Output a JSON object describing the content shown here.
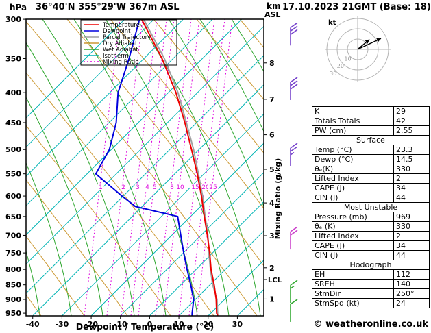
{
  "header": {
    "station": "36°40'N 355°29'W 367m ASL",
    "datetime": "17.10.2023 21GMT (Base: 18)",
    "pressure_unit": "hPa",
    "km_label": "km",
    "asl_label": "ASL"
  },
  "footer": {
    "credit": "© weatheronline.co.uk"
  },
  "chart_data": {
    "type": "line",
    "title": "Skew-T log-P sounding",
    "xlabel": "Dewpoint / Temperature (°C)",
    "ylabel": "hPa",
    "x_ticks": [
      -40,
      -30,
      -20,
      -10,
      0,
      10,
      20,
      30
    ],
    "pressure_ticks": [
      300,
      350,
      400,
      450,
      500,
      550,
      600,
      650,
      700,
      750,
      800,
      850,
      900,
      950
    ],
    "pressure_range": [
      300,
      960
    ],
    "temp_range": [
      -42,
      38
    ],
    "km_ticks": [
      8,
      7,
      6,
      5,
      4,
      3,
      2,
      1
    ],
    "mixing_ratio_values": [
      1,
      2,
      3,
      4,
      5,
      8,
      10,
      15,
      20,
      25
    ],
    "mixing_ratio_axis_label": "Mixing Ratio (g/kg)",
    "lcl_label": "LCL",
    "series": [
      {
        "name": "Parcel Trajectory",
        "color": "#a0a0a0",
        "points": [
          [
            969,
            23.3
          ],
          [
            900,
            21.0
          ],
          [
            850,
            17.7
          ],
          [
            800,
            15.0
          ],
          [
            750,
            12.4
          ],
          [
            700,
            9.9
          ],
          [
            650,
            6.6
          ],
          [
            600,
            3.2
          ],
          [
            550,
            -1.0
          ],
          [
            500,
            -5.7
          ],
          [
            450,
            -11.5
          ],
          [
            400,
            -18.1
          ],
          [
            350,
            -27.0
          ],
          [
            300,
            -39.0
          ]
        ]
      },
      {
        "name": "Temperature",
        "color": "#ee0000",
        "points": [
          [
            969,
            23.3
          ],
          [
            950,
            22.6
          ],
          [
            900,
            20.7
          ],
          [
            850,
            18.2
          ],
          [
            800,
            15.2
          ],
          [
            750,
            12.7
          ],
          [
            700,
            9.7
          ],
          [
            650,
            6.3
          ],
          [
            600,
            2.8
          ],
          [
            550,
            -1.4
          ],
          [
            500,
            -6.4
          ],
          [
            450,
            -12.0
          ],
          [
            400,
            -18.8
          ],
          [
            350,
            -27.8
          ],
          [
            300,
            -39.7
          ]
        ]
      },
      {
        "name": "Dewpoint",
        "color": "#0000dd",
        "points": [
          [
            969,
            14.5
          ],
          [
            950,
            14.2
          ],
          [
            900,
            13.0
          ],
          [
            850,
            10.2
          ],
          [
            800,
            7.0
          ],
          [
            750,
            3.8
          ],
          [
            700,
            0.6
          ],
          [
            650,
            -2.8
          ],
          [
            625,
            -18.5
          ],
          [
            600,
            -24.4
          ],
          [
            550,
            -36.1
          ],
          [
            500,
            -34.5
          ],
          [
            450,
            -35.5
          ],
          [
            400,
            -38.6
          ],
          [
            350,
            -39.1
          ],
          [
            300,
            -40.4
          ]
        ]
      }
    ],
    "legend": [
      {
        "label": "Temperature",
        "color": "#ee0000",
        "dash": ""
      },
      {
        "label": "Dewpoint",
        "color": "#0000dd",
        "dash": ""
      },
      {
        "label": "Parcel Trajectory",
        "color": "#a0a0a0",
        "dash": ""
      },
      {
        "label": "Dry Adiabat",
        "color": "#cc9933",
        "dash": ""
      },
      {
        "label": "Wet Adiabat",
        "color": "#2aa52a",
        "dash": ""
      },
      {
        "label": "Isotherm",
        "color": "#00b4b4",
        "dash": ""
      },
      {
        "label": "Mixing Ratio",
        "color": "#dd00dd",
        "dash": "2,3"
      }
    ],
    "wind_barbs": [
      {
        "p": 310,
        "color": "#7744cc",
        "speed_kt": 30
      },
      {
        "p": 384,
        "color": "#7744cc",
        "speed_kt": 30
      },
      {
        "p": 497,
        "color": "#7744cc",
        "speed_kt": 25
      },
      {
        "p": 690,
        "color": "#cc44cc",
        "speed_kt": 20
      },
      {
        "p": 851,
        "color": "#33aa33",
        "speed_kt": 15
      },
      {
        "p": 917,
        "color": "#33aa33",
        "speed_kt": 10
      }
    ],
    "hodograph": {
      "unit_label": "kt",
      "ring_labels": [
        "10",
        "20",
        "30"
      ],
      "vectors": [
        {
          "toward_deg": 65,
          "kt": 25
        },
        {
          "toward_deg": 50,
          "kt": 15
        }
      ]
    }
  },
  "table": {
    "rows": [
      {
        "l": "K",
        "v": "29"
      },
      {
        "l": "Totals Totals",
        "v": "42"
      },
      {
        "l": "PW (cm)",
        "v": "2.55"
      },
      {
        "h": "Surface"
      },
      {
        "l": "Temp (°C)",
        "v": "23.3"
      },
      {
        "l": "Dewp (°C)",
        "v": "14.5"
      },
      {
        "l": "θₑ(K)",
        "v": "330"
      },
      {
        "l": "Lifted Index",
        "v": "2"
      },
      {
        "l": "CAPE (J)",
        "v": "34"
      },
      {
        "l": "CIN (J)",
        "v": "44"
      },
      {
        "h": "Most Unstable"
      },
      {
        "l": "Pressure (mb)",
        "v": "969"
      },
      {
        "l": "θₑ (K)",
        "v": "330"
      },
      {
        "l": "Lifted Index",
        "v": "2"
      },
      {
        "l": "CAPE (J)",
        "v": "34"
      },
      {
        "l": "CIN (J)",
        "v": "44"
      },
      {
        "h": "Hodograph"
      },
      {
        "l": "EH",
        "v": "112"
      },
      {
        "l": "SREH",
        "v": "140"
      },
      {
        "l": "StmDir",
        "v": "250°"
      },
      {
        "l": "StmSpd (kt)",
        "v": "24"
      }
    ]
  }
}
